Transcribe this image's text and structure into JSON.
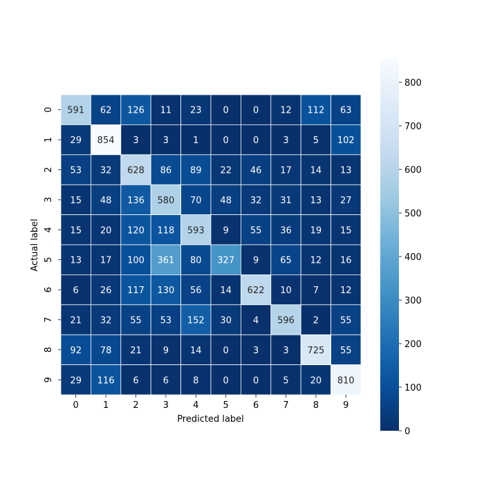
{
  "chart_data": {
    "type": "heatmap",
    "title": "",
    "xlabel": "Predicted label",
    "ylabel": "Actual label",
    "x_categories": [
      "0",
      "1",
      "2",
      "3",
      "4",
      "5",
      "6",
      "7",
      "8",
      "9"
    ],
    "y_categories": [
      "0",
      "1",
      "2",
      "3",
      "4",
      "5",
      "6",
      "7",
      "8",
      "9"
    ],
    "values": [
      [
        591,
        62,
        126,
        11,
        23,
        0,
        0,
        12,
        112,
        63
      ],
      [
        29,
        854,
        3,
        3,
        1,
        0,
        0,
        3,
        5,
        102
      ],
      [
        53,
        32,
        628,
        86,
        89,
        22,
        46,
        17,
        14,
        13
      ],
      [
        15,
        48,
        136,
        580,
        70,
        48,
        32,
        31,
        13,
        27
      ],
      [
        15,
        20,
        120,
        118,
        593,
        9,
        55,
        36,
        19,
        15
      ],
      [
        13,
        17,
        100,
        361,
        80,
        327,
        9,
        65,
        12,
        16
      ],
      [
        6,
        26,
        117,
        130,
        56,
        14,
        622,
        10,
        7,
        12
      ],
      [
        21,
        32,
        55,
        53,
        152,
        30,
        4,
        596,
        2,
        55
      ],
      [
        92,
        78,
        21,
        9,
        14,
        0,
        3,
        3,
        725,
        55
      ],
      [
        29,
        116,
        6,
        6,
        8,
        0,
        0,
        5,
        20,
        810
      ]
    ],
    "colormap": "Blues_r",
    "vmin": 0,
    "vmax": 854,
    "colorbar_ticks": [
      0,
      100,
      200,
      300,
      400,
      500,
      600,
      700,
      800
    ],
    "annotations": true,
    "grid_line_color": "#ffffff"
  }
}
